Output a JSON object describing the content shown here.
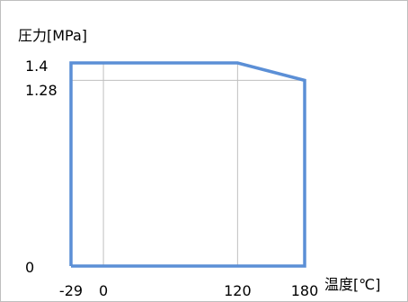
{
  "chart_data": {
    "type": "line",
    "xlabel": "温度[℃]",
    "ylabel": "圧力[MPa]",
    "xlim": [
      -29,
      180
    ],
    "ylim": [
      0,
      1.4
    ],
    "x_ticks": [
      -29,
      0,
      120,
      180
    ],
    "x_tick_labels": [
      "-29",
      "0",
      "120",
      "180"
    ],
    "y_ticks": [
      0,
      1.28,
      1.4
    ],
    "y_tick_labels": [
      "0",
      "1.28",
      "1.4"
    ],
    "grid": {
      "vertical_at_x": [
        0,
        120
      ],
      "horizontal_at_y": [
        1.28
      ]
    },
    "legend": "none",
    "series": [
      {
        "color": "#5b8fd6",
        "points": [
          [
            -29,
            0
          ],
          [
            -29,
            1.4
          ],
          [
            120,
            1.4
          ],
          [
            180,
            1.28
          ],
          [
            180,
            0
          ],
          [
            -29,
            0
          ]
        ]
      }
    ]
  }
}
